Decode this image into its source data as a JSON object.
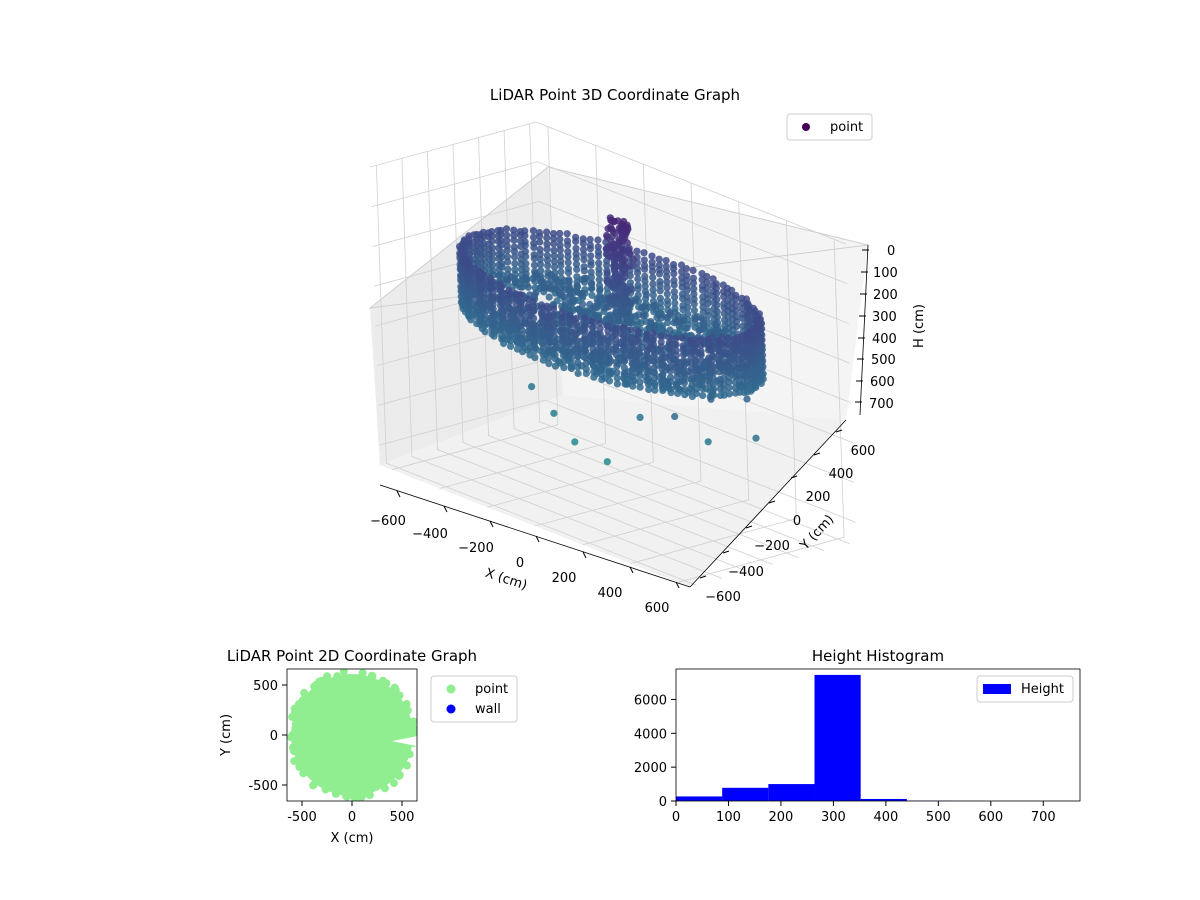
{
  "colors": {
    "viridis_dark": "#440154",
    "viridis_mid": "#31688e",
    "viridis_teal": "#21918c",
    "point_2d": "#90ee90",
    "wall_2d": "#0000ff",
    "histogram": "#0000ff",
    "pane": "#f2f2f2",
    "grid": "#d0d0d0"
  },
  "chart_data": [
    {
      "type": "scatter",
      "subtype": "3d",
      "title": "LiDAR Point 3D Coordinate Graph",
      "xlabel": "X (cm)",
      "ylabel": "Y (cm)",
      "zlabel": "H (cm)",
      "xticks": [
        "−600",
        "−400",
        "−200",
        "0",
        "200",
        "400",
        "600"
      ],
      "yticks": [
        "−600",
        "−400",
        "−200",
        "0",
        "200",
        "400",
        "600"
      ],
      "zticks": [
        "0",
        "100",
        "200",
        "300",
        "400",
        "500",
        "600",
        "700"
      ],
      "xlim": [
        -650,
        650
      ],
      "ylim": [
        -650,
        650
      ],
      "zlim": [
        0,
        750
      ],
      "zaxis_inverted": true,
      "grid": true,
      "colormap": "viridis",
      "legend": {
        "entries": [
          "point"
        ],
        "placement": "top-right"
      },
      "structure": {
        "ring_radius": 550,
        "ring_height_range": [
          200,
          350
        ],
        "interior_point_height": 320,
        "column_cluster_center": [
          -30,
          130
        ],
        "column_cluster_height_range": [
          50,
          300
        ]
      },
      "outliers": [
        {
          "x": 0,
          "y": -640,
          "z": 400
        },
        {
          "x": 80,
          "y": -620,
          "z": 450
        },
        {
          "x": 170,
          "y": -630,
          "z": 500
        },
        {
          "x": 300,
          "y": -620,
          "z": 520
        },
        {
          "x": 380,
          "y": -500,
          "z": 400
        },
        {
          "x": 560,
          "y": -560,
          "z": 350
        },
        {
          "x": 640,
          "y": -420,
          "z": 300
        },
        {
          "x": 600,
          "y": -380,
          "z": 420
        },
        {
          "x": 700,
          "y": -250,
          "z": 300
        },
        {
          "x": 760,
          "y": -300,
          "z": 380
        }
      ]
    },
    {
      "type": "scatter",
      "title": "LiDAR Point 2D Coordinate Graph",
      "xlabel": "X (cm)",
      "ylabel": "Y (cm)",
      "xticks": [
        -500,
        0,
        500
      ],
      "yticks": [
        -500,
        0,
        500
      ],
      "xlim": [
        -650,
        650
      ],
      "ylim": [
        -650,
        650
      ],
      "legend": {
        "entries": [
          "point",
          "wall"
        ],
        "placement": "outside-right"
      },
      "series": [
        {
          "name": "point",
          "shape": "disc",
          "center": [
            0,
            0
          ],
          "radius": 610
        },
        {
          "name": "wall",
          "points": []
        }
      ]
    },
    {
      "type": "bar",
      "subtype": "histogram",
      "title": "Height Histogram",
      "xticks": [
        0,
        100,
        200,
        300,
        400,
        500,
        600,
        700
      ],
      "yticks": [
        0,
        2000,
        4000,
        6000
      ],
      "xlim": [
        0,
        770
      ],
      "ylim": [
        0,
        7800
      ],
      "legend": {
        "entries": [
          "Height"
        ],
        "placement": "top-right"
      },
      "bins": [
        {
          "from": 0,
          "to": 88,
          "count": 270
        },
        {
          "from": 88,
          "to": 176,
          "count": 780
        },
        {
          "from": 176,
          "to": 264,
          "count": 1000
        },
        {
          "from": 264,
          "to": 352,
          "count": 7450
        },
        {
          "from": 352,
          "to": 440,
          "count": 120
        },
        {
          "from": 440,
          "to": 528,
          "count": 15
        },
        {
          "from": 528,
          "to": 616,
          "count": 5
        },
        {
          "from": 616,
          "to": 704,
          "count": 5
        },
        {
          "from": 704,
          "to": 770,
          "count": 5
        }
      ]
    }
  ]
}
